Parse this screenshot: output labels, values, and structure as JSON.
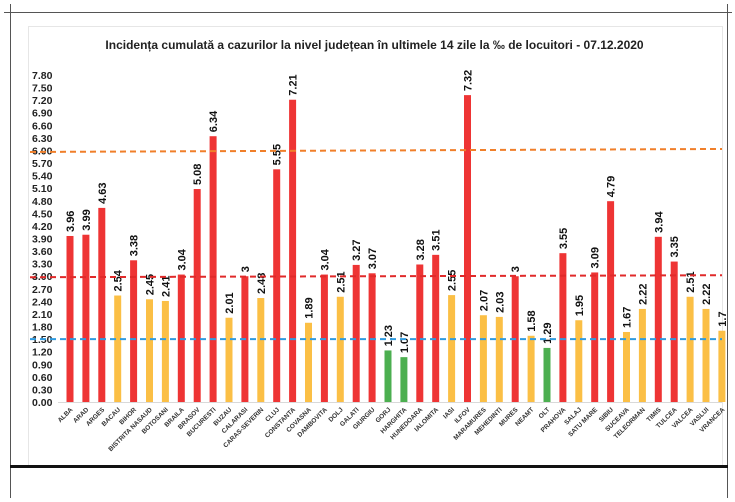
{
  "chart_data": {
    "type": "bar",
    "title": "Incidența cumulată a cazurilor la nivel județean în ultimele 14 zile la ‰ de locuitori - 07.12.2020",
    "categories": [
      "ALBA",
      "ARAD",
      "ARGES",
      "BACAU",
      "BIHOR",
      "BISTRITA NASAUD",
      "BOTOSANI",
      "BRAILA",
      "BRASOV",
      "BUCURESTI",
      "BUZAU",
      "CALARASI",
      "CARAS-SEVERIN",
      "CLUJ",
      "CONSTANTA",
      "COVASNA",
      "DAMBOVITA",
      "DOLJ",
      "GALATI",
      "GIURGIU",
      "GORJ",
      "HARGHITA",
      "HUNEDOARA",
      "IALOMITA",
      "IASI",
      "ILFOV",
      "MARAMURES",
      "MEHEDINTI",
      "MURES",
      "NEAMT",
      "OLT",
      "PRAHOVA",
      "SALAJ",
      "SATU MARE",
      "SIBIU",
      "SUCEAVA",
      "TELEORMAN",
      "TIMIS",
      "TULCEA",
      "VALCEA",
      "VASLUI",
      "VRANCEA"
    ],
    "values": [
      3.96,
      3.99,
      4.63,
      2.54,
      3.38,
      2.45,
      2.41,
      3.04,
      5.08,
      6.34,
      2.01,
      3,
      2.48,
      5.55,
      7.21,
      1.89,
      3.04,
      2.51,
      3.27,
      3.07,
      1.23,
      1.07,
      3.28,
      3.51,
      2.55,
      7.32,
      2.07,
      2.03,
      3,
      1.58,
      1.29,
      3.55,
      1.95,
      3.09,
      4.79,
      1.67,
      2.22,
      3.94,
      3.35,
      2.51,
      2.22,
      1.7
    ],
    "labels": [
      "3.96",
      "3.99",
      "4.63",
      "2.54",
      "3.38",
      "2.45",
      "2.41",
      "3.04",
      "5.08",
      "6.34",
      "2.01",
      "3",
      "2.48",
      "5.55",
      "7.21",
      "1.89",
      "3.04",
      "2.51",
      "3.27",
      "3.07",
      "1.23",
      "1.07",
      "3.28",
      "3.51",
      "2.55",
      "7.32",
      "2.07",
      "2.03",
      "3",
      "1.58",
      "1.29",
      "3.55",
      "1.95",
      "3.09",
      "4.79",
      "1.67",
      "2.22",
      "3.94",
      "3.35",
      "2.51",
      "2.22",
      "1.7"
    ],
    "ylim": [
      0,
      7.8
    ],
    "yticks": [
      "0.00",
      "0.30",
      "0.60",
      "0.90",
      "1.20",
      "1.50",
      "1.80",
      "2.10",
      "2.40",
      "2.70",
      "3.00",
      "3.30",
      "3.60",
      "3.90",
      "4.20",
      "4.50",
      "4.80",
      "5.10",
      "5.40",
      "5.70",
      "6.00",
      "6.30",
      "6.60",
      "6.90",
      "7.20",
      "7.50",
      "7.80"
    ],
    "grid": false,
    "reference_lines": [
      {
        "value": 1.5,
        "color": "#2f9be0",
        "style": "dashed"
      },
      {
        "value": 3.0,
        "color": "#e02a2a",
        "style": "dashed"
      },
      {
        "value": 6.0,
        "color": "#f07f2a",
        "style": "dashed"
      }
    ],
    "colors": {
      "high": "#ee3434",
      "medium": "#fbbf45",
      "low": "#4caf50"
    }
  }
}
